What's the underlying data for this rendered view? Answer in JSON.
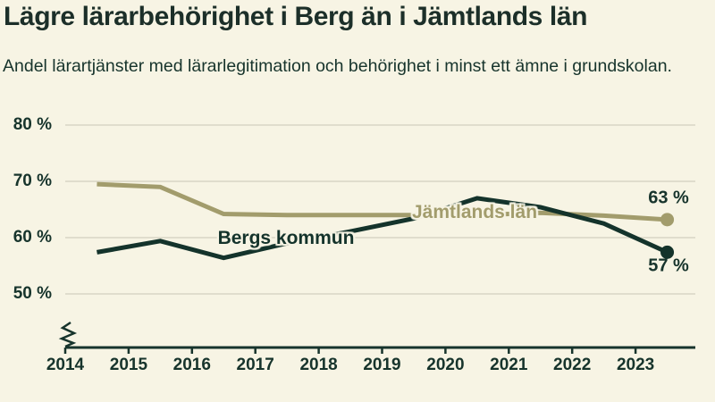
{
  "header": {
    "title": "Lägre lärarbehörighet i Berg än i Jämtlands län",
    "subtitle": "Andel lärartjänster med lärarlegitimation och behörighet i minst ett ämne i grundskolan."
  },
  "colors": {
    "background": "#f7f4e4",
    "text": "#17342c",
    "gridline": "#e0ddcd",
    "axis": "#17342c"
  },
  "chart_data": {
    "type": "line",
    "title": "Lägre lärarbehörighet i Berg än i Jämtlands län",
    "subtitle": "Andel lärartjänster med lärarlegitimation och behörighet i minst ett ämne i grundskolan.",
    "x": [
      2014.5,
      2015.5,
      2016.5,
      2017.5,
      2018.5,
      2019.5,
      2020.5,
      2021.5,
      2022.5,
      2023.5
    ],
    "x_tick_labels": [
      "2014",
      "2015",
      "2016",
      "2017",
      "2018",
      "2019",
      "2020",
      "2021",
      "2022",
      "2023"
    ],
    "y_tick_labels": [
      "80 %",
      "70 %",
      "60 %",
      "50 %"
    ],
    "y_tick_values": [
      80,
      70,
      60,
      50
    ],
    "ylim": [
      50,
      80
    ],
    "xlim": [
      2014,
      2024.1
    ],
    "y_unit": "%",
    "grid": "horizontal",
    "axis_break": true,
    "legend_position": "inline-labels",
    "series": [
      {
        "name": "Jämtlands län",
        "color": "#a29c6c",
        "values": [
          69.5,
          69.0,
          64.2,
          64.0,
          64.0,
          64.0,
          64.0,
          64.4,
          63.9,
          63.2
        ],
        "end_label": "63 %"
      },
      {
        "name": "Bergs kommun",
        "color": "#14332b",
        "values": [
          57.4,
          59.4,
          56.4,
          59.0,
          61.1,
          63.4,
          67.0,
          65.4,
          62.5,
          57.4
        ],
        "end_label": "57 %"
      }
    ]
  }
}
